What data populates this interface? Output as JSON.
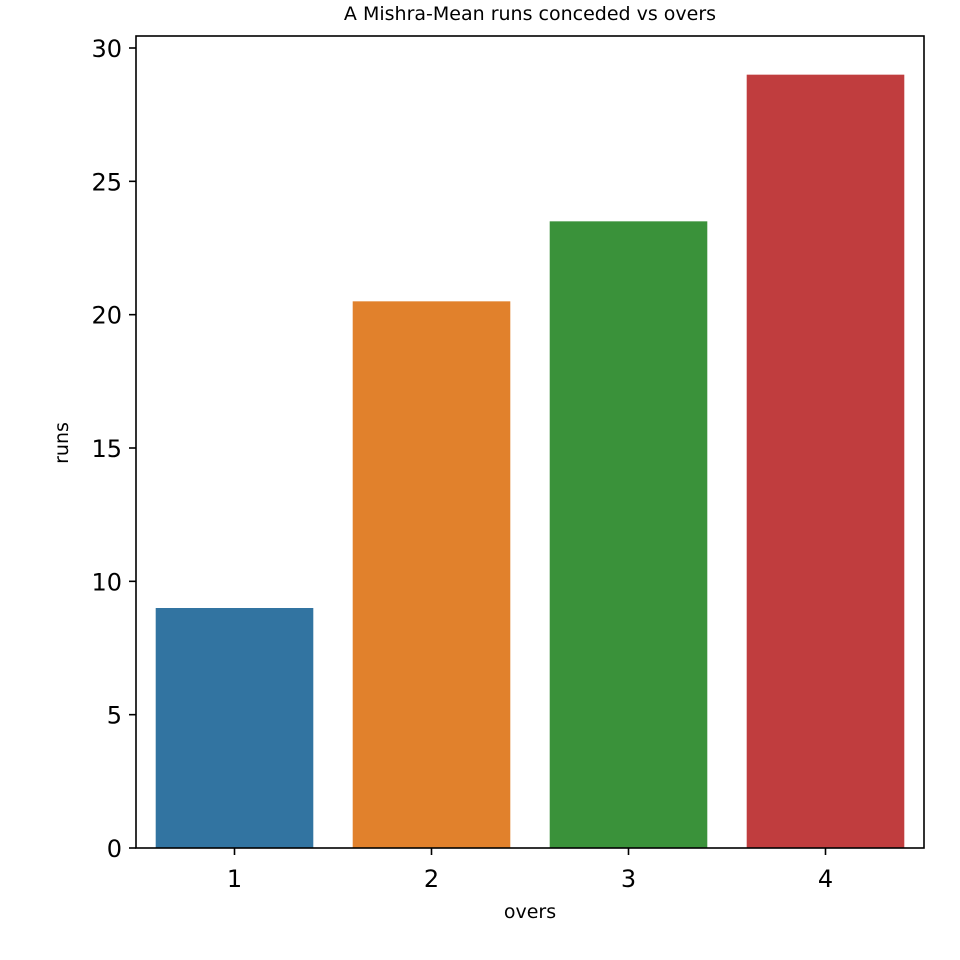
{
  "chart_data": {
    "type": "bar",
    "title": "A Mishra-Mean runs conceded vs overs",
    "xlabel": "overs",
    "ylabel": "runs",
    "categories": [
      "1",
      "2",
      "3",
      "4"
    ],
    "values": [
      9,
      20.5,
      23.5,
      29
    ],
    "colors": [
      "#3274a1",
      "#e1812c",
      "#3a923a",
      "#c03d3e"
    ],
    "ylim": [
      0,
      30.45
    ],
    "yticks": [
      0,
      5,
      10,
      15,
      20,
      25,
      30
    ],
    "grid": false,
    "legend": "none"
  }
}
